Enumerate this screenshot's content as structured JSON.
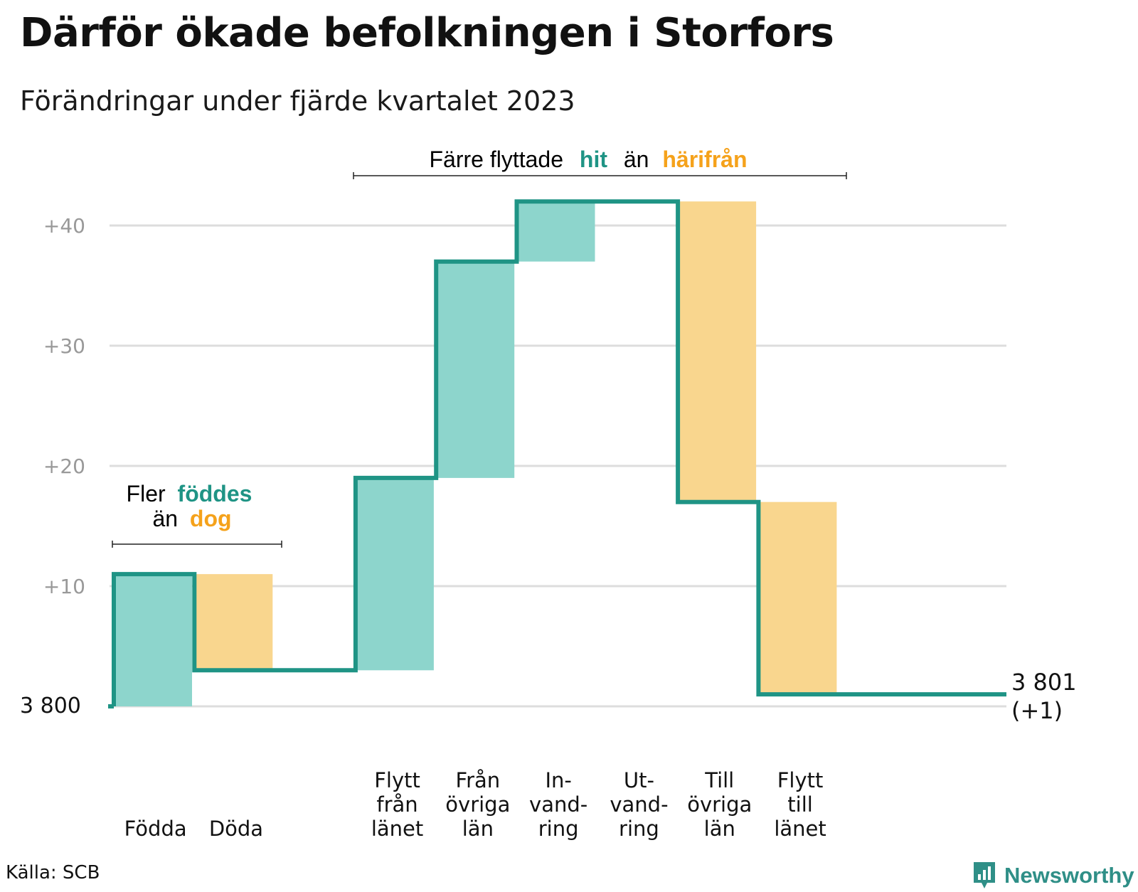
{
  "header": {
    "title": "Därför ökade befolkningen i Storfors",
    "subtitle": "Förändringar under fjärde kvartalet 2023"
  },
  "footer": {
    "source": "Källa: SCB",
    "brand": "Newsworthy"
  },
  "colors": {
    "increase": "#8dd5cc",
    "decrease": "#f9d68e",
    "line": "#1f9485",
    "grid": "#dddddd",
    "tick_text": "#999999",
    "accent_teal": "#1f9485",
    "accent_orange": "#f5a21b"
  },
  "annotations": {
    "births": {
      "part1": "Fler",
      "part2": "föddes",
      "part3": "än",
      "part4": "dog"
    },
    "migration": {
      "part1": "Färre flyttade",
      "part2": "hit",
      "part3": "än",
      "part4": "härifrån"
    }
  },
  "chart_data": {
    "type": "waterfall",
    "baseline": 3800,
    "baseline_label": "3 800",
    "end_label_value": "3 801",
    "end_label_change": "(+1)",
    "y_ticks": [
      {
        "value": 40,
        "label": "+40"
      },
      {
        "value": 30,
        "label": "+30"
      },
      {
        "value": 20,
        "label": "+20"
      },
      {
        "value": 10,
        "label": "+10"
      }
    ],
    "ylim": [
      0,
      42
    ],
    "grid": true,
    "steps": [
      {
        "label": [
          "Födda"
        ],
        "delta": 11,
        "kind": "increase"
      },
      {
        "label": [
          "Döda"
        ],
        "delta": -8,
        "kind": "decrease"
      },
      {
        "label": [],
        "delta": 0,
        "kind": "none"
      },
      {
        "label": [
          "Flytt",
          "från",
          "länet"
        ],
        "delta": 16,
        "kind": "increase"
      },
      {
        "label": [
          "Från",
          "övriga",
          "län"
        ],
        "delta": 18,
        "kind": "increase"
      },
      {
        "label": [
          "In-",
          "vand-",
          "ring"
        ],
        "delta": 5,
        "kind": "increase"
      },
      {
        "label": [
          "Ut-",
          "vand-",
          "ring"
        ],
        "delta": 0,
        "kind": "decrease"
      },
      {
        "label": [
          "Till",
          "övriga",
          "län"
        ],
        "delta": -25,
        "kind": "decrease"
      },
      {
        "label": [
          "Flytt",
          "till",
          "länet"
        ],
        "delta": -16,
        "kind": "decrease"
      }
    ],
    "net_change": 1
  }
}
